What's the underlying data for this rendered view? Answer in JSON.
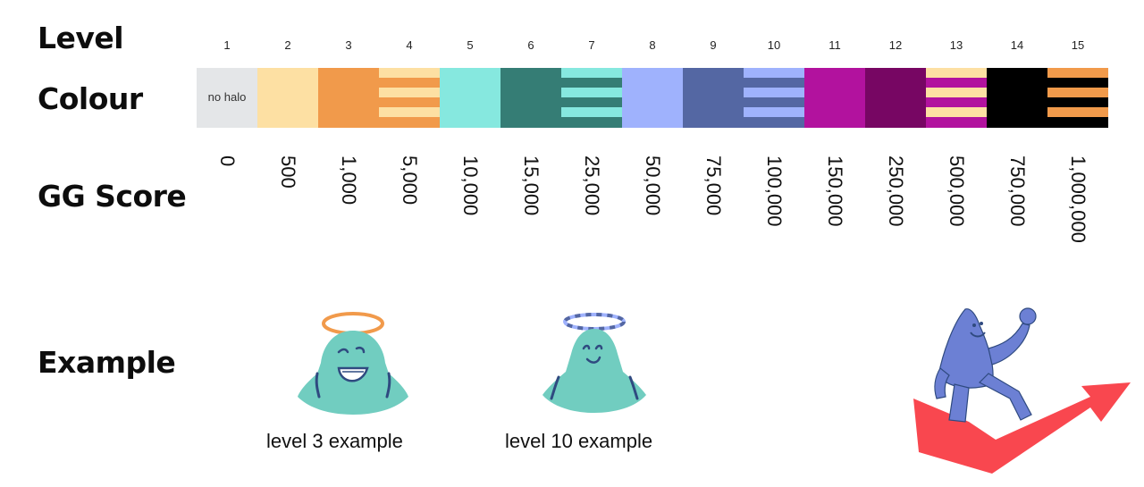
{
  "labels": {
    "level": "Level",
    "colour": "Colour",
    "score": "GG Score",
    "example": "Example"
  },
  "levels": [
    {
      "level": "1",
      "score": "0",
      "colour": "#e4e6e8",
      "pattern": "solid",
      "text": "no halo"
    },
    {
      "level": "2",
      "score": "500",
      "colour": "#fde0a3",
      "pattern": "solid"
    },
    {
      "level": "3",
      "score": "1,000",
      "colour": "#f19a4b",
      "pattern": "solid"
    },
    {
      "level": "4",
      "score": "5,000",
      "colour": "#f19a4b",
      "stripe": "#fde0a3",
      "pattern": "striped"
    },
    {
      "level": "5",
      "score": "10,000",
      "colour": "#86e8df",
      "pattern": "solid"
    },
    {
      "level": "6",
      "score": "15,000",
      "colour": "#357d75",
      "pattern": "solid"
    },
    {
      "level": "7",
      "score": "25,000",
      "colour": "#357d75",
      "stripe": "#86e8df",
      "pattern": "striped"
    },
    {
      "level": "8",
      "score": "50,000",
      "colour": "#9fb2fd",
      "pattern": "solid"
    },
    {
      "level": "9",
      "score": "75,000",
      "colour": "#5467a3",
      "pattern": "solid"
    },
    {
      "level": "10",
      "score": "100,000",
      "colour": "#5467a3",
      "stripe": "#9fb2fd",
      "pattern": "striped"
    },
    {
      "level": "11",
      "score": "150,000",
      "colour": "#b2129e",
      "pattern": "solid"
    },
    {
      "level": "12",
      "score": "250,000",
      "colour": "#770663",
      "pattern": "solid"
    },
    {
      "level": "13",
      "score": "500,000",
      "colour": "#b2129e",
      "stripe": "#fde0a3",
      "pattern": "striped"
    },
    {
      "level": "14",
      "score": "750,000",
      "colour": "#000000",
      "pattern": "solid"
    },
    {
      "level": "15",
      "score": "1,000,000",
      "colour": "#000000",
      "stripe": "#f19a4b",
      "pattern": "striped"
    }
  ],
  "examples": [
    {
      "caption": "level 3 example",
      "halo_colour": "#f19a4b",
      "halo_style": "solid"
    },
    {
      "caption": "level 10 example",
      "halo_colour": "#9fb2fd",
      "halo_dash": "#5467a3",
      "halo_style": "dashed"
    }
  ],
  "colours": {
    "character_body": "#71cdc0",
    "character_line": "#2f4a80",
    "walker_body": "#6c80d4",
    "arrow": "#f9474f"
  }
}
